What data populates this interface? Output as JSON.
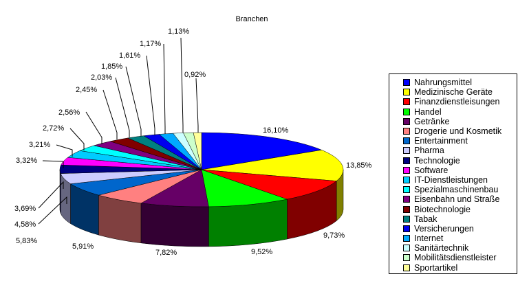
{
  "chart_data": {
    "type": "pie",
    "title": "Branchen",
    "legend_position": "right",
    "slices": [
      {
        "name": "Nahrungsmittel",
        "value": 16.1,
        "label": "16,10%",
        "color": "#0000FF"
      },
      {
        "name": "Medizinische Geräte",
        "value": 13.85,
        "label": "13,85%",
        "color": "#FFFF00"
      },
      {
        "name": "Finanzdienstleisungen",
        "value": 9.73,
        "label": "9,73%",
        "color": "#FF0000"
      },
      {
        "name": "Handel",
        "value": 9.52,
        "label": "9,52%",
        "color": "#00FF00"
      },
      {
        "name": "Getränke",
        "value": 7.82,
        "label": "7,82%",
        "color": "#660066"
      },
      {
        "name": "Drogerie und Kosmetik",
        "value": 5.91,
        "label": "5,91%",
        "color": "#FF8080"
      },
      {
        "name": "Entertainment",
        "value": 5.83,
        "label": "5,83%",
        "color": "#0066CC"
      },
      {
        "name": "Pharma",
        "value": 4.58,
        "label": "4,58%",
        "color": "#CCCCFF"
      },
      {
        "name": "Technologie",
        "value": 3.69,
        "label": "3,69%",
        "color": "#000080"
      },
      {
        "name": "Software",
        "value": 3.32,
        "label": "3,32%",
        "color": "#FF00FF"
      },
      {
        "name": "IT-Dienstleistungen",
        "value": 3.21,
        "label": "3,21%",
        "color": "#00CCFF"
      },
      {
        "name": "Spezialmaschinenbau",
        "value": 2.72,
        "label": "2,72%",
        "color": "#00FFFF"
      },
      {
        "name": "Eisenbahn und Straße",
        "value": 2.56,
        "label": "2,56%",
        "color": "#800080"
      },
      {
        "name": "Biotechnologie",
        "value": 2.45,
        "label": "2,45%",
        "color": "#800000"
      },
      {
        "name": "Tabak",
        "value": 2.03,
        "label": "2,03%",
        "color": "#008080"
      },
      {
        "name": "Versicherungen",
        "value": 1.85,
        "label": "1,85%",
        "color": "#0000EE"
      },
      {
        "name": "Internet",
        "value": 1.61,
        "label": "1,61%",
        "color": "#00AAFF"
      },
      {
        "name": "Sanitärtechnik",
        "value": 1.17,
        "label": "1,17%",
        "color": "#CCFFFF"
      },
      {
        "name": "Mobilitätsdienstleister",
        "value": 1.13,
        "label": "1,13%",
        "color": "#CCFFCC"
      },
      {
        "name": "Sportartikel",
        "value": 0.92,
        "label": "0,92%",
        "color": "#FFFF99"
      }
    ]
  }
}
